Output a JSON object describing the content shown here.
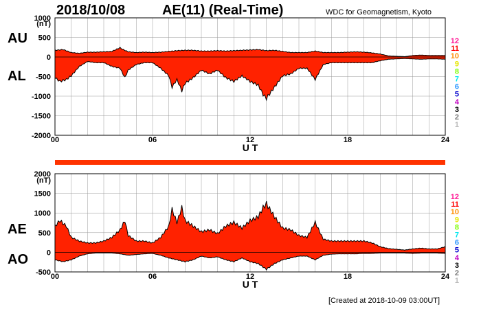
{
  "header": {
    "date": "2018/10/08",
    "title": "AE(11) (Real-Time)",
    "source": "WDC for Geomagnetism, Kyoto"
  },
  "footer": {
    "created": "[Created at 2018-10-09 03:00UT]"
  },
  "colors": {
    "fill": "#ff2200",
    "outline": "#000000",
    "grid": "#999999",
    "indicator": "#ff3300"
  },
  "chart_data": [
    {
      "type": "area",
      "id": "au-al",
      "side_labels": [
        "AU",
        "AL"
      ],
      "unit_label": "(nT)",
      "ylim": [
        -2000,
        1000
      ],
      "y_ticks": [
        1000,
        500,
        0,
        -500,
        -1000,
        -1500,
        -2000
      ],
      "xlim": [
        0,
        24
      ],
      "x_ticks": [
        "00",
        "06",
        "12",
        "18",
        "24"
      ],
      "xlabel": "U T",
      "grid": true,
      "series": [
        {
          "name": "AU",
          "x": [
            0,
            0.5,
            1,
            1.5,
            2,
            2.5,
            3,
            3.5,
            4,
            4.2,
            4.5,
            5,
            5.5,
            6,
            6.5,
            7,
            7.5,
            8,
            8.5,
            9,
            9.5,
            10,
            10.5,
            11,
            11.5,
            12,
            12.5,
            13,
            13.5,
            14,
            14.5,
            15,
            15.5,
            16,
            16.5,
            17,
            17.5,
            18,
            18.5,
            19,
            19.5,
            20,
            20.5,
            21,
            21.5,
            22,
            22.5,
            23,
            23.5,
            24
          ],
          "values": [
            180,
            200,
            120,
            100,
            130,
            130,
            140,
            150,
            250,
            200,
            140,
            120,
            130,
            120,
            130,
            150,
            170,
            180,
            180,
            160,
            160,
            170,
            160,
            170,
            180,
            190,
            200,
            170,
            180,
            150,
            120,
            120,
            120,
            160,
            120,
            120,
            120,
            130,
            140,
            130,
            110,
            80,
            30,
            20,
            10,
            40,
            50,
            40,
            40,
            40
          ]
        },
        {
          "name": "AL",
          "x": [
            0,
            0.3,
            0.7,
            1,
            1.5,
            2,
            2.5,
            3,
            3.5,
            4,
            4.3,
            4.5,
            5,
            5.5,
            6,
            6.5,
            7,
            7.2,
            7.5,
            7.8,
            8,
            8.5,
            9,
            9.5,
            10,
            10.5,
            11,
            11.5,
            12,
            12.5,
            12.8,
            13,
            13.5,
            14,
            14.5,
            15,
            15.5,
            16,
            16.5,
            17,
            17.5,
            18,
            18.5,
            19,
            19.5,
            20,
            20.5,
            21,
            21.5,
            22,
            22.5,
            23,
            23.5,
            24
          ],
          "values": [
            -550,
            -650,
            -600,
            -500,
            -250,
            -120,
            -150,
            -150,
            -250,
            -300,
            -550,
            -350,
            -200,
            -150,
            -150,
            -300,
            -500,
            -800,
            -600,
            -900,
            -700,
            -550,
            -350,
            -450,
            -350,
            -550,
            -650,
            -500,
            -650,
            -750,
            -1000,
            -1100,
            -800,
            -500,
            -450,
            -300,
            -300,
            -600,
            -200,
            -150,
            -150,
            -150,
            -150,
            -150,
            -150,
            -100,
            -60,
            -50,
            -40,
            -50,
            -60,
            -50,
            -50,
            -60
          ]
        }
      ]
    },
    {
      "type": "area",
      "id": "ae-ao",
      "side_labels": [
        "AE",
        "AO"
      ],
      "unit_label": "(nT)",
      "ylim": [
        -500,
        2000
      ],
      "y_ticks": [
        2000,
        1500,
        1000,
        500,
        0,
        -500
      ],
      "xlim": [
        0,
        24
      ],
      "x_ticks": [
        "00",
        "06",
        "12",
        "18",
        "24"
      ],
      "xlabel": "U T",
      "grid": true,
      "series": [
        {
          "name": "AE",
          "x": [
            0,
            0.3,
            0.7,
            1,
            1.5,
            2,
            2.5,
            3,
            3.5,
            4,
            4.3,
            4.5,
            5,
            5.5,
            6,
            6.5,
            7,
            7.2,
            7.5,
            7.8,
            8,
            8.5,
            9,
            9.5,
            10,
            10.5,
            11,
            11.5,
            12,
            12.5,
            12.8,
            13,
            13.5,
            14,
            14.5,
            15,
            15.5,
            16,
            16.5,
            17,
            17.5,
            18,
            18.5,
            19,
            19.5,
            20,
            20.5,
            21,
            21.5,
            22,
            22.5,
            23,
            23.5,
            24
          ],
          "values": [
            700,
            850,
            700,
            400,
            300,
            250,
            250,
            300,
            400,
            600,
            850,
            450,
            300,
            300,
            250,
            400,
            700,
            1150,
            800,
            1200,
            850,
            700,
            550,
            600,
            500,
            700,
            800,
            650,
            850,
            950,
            1200,
            1300,
            950,
            650,
            600,
            450,
            400,
            800,
            350,
            300,
            300,
            300,
            300,
            300,
            250,
            150,
            100,
            80,
            60,
            90,
            110,
            90,
            90,
            150
          ]
        },
        {
          "name": "AO",
          "x": [
            0,
            0.5,
            1,
            1.5,
            2,
            2.5,
            3,
            3.5,
            4,
            4.5,
            5,
            5.5,
            6,
            6.5,
            7,
            7.5,
            8,
            8.5,
            9,
            9.5,
            10,
            10.5,
            11,
            11.5,
            12,
            12.5,
            13,
            13.5,
            14,
            14.5,
            15,
            15.5,
            16,
            16.5,
            17,
            17.5,
            18,
            18.5,
            19,
            19.5,
            20,
            20.5,
            21,
            21.5,
            22,
            22.5,
            23,
            23.5,
            24
          ],
          "values": [
            -200,
            -250,
            -200,
            -100,
            -40,
            -20,
            -20,
            -20,
            -40,
            -80,
            -60,
            -40,
            -30,
            -80,
            -150,
            -200,
            -250,
            -200,
            -100,
            -150,
            -120,
            -200,
            -250,
            -150,
            -250,
            -300,
            -450,
            -300,
            -200,
            -150,
            -100,
            -100,
            -200,
            -80,
            -50,
            -40,
            -40,
            -40,
            -30,
            -30,
            -20,
            -20,
            -20,
            -20,
            -30,
            -20,
            -20,
            -20,
            -30
          ]
        }
      ]
    }
  ],
  "station_legend": [
    {
      "label": "12",
      "color": "#ff1493"
    },
    {
      "label": "11",
      "color": "#ff0000"
    },
    {
      "label": "10",
      "color": "#ff8c00"
    },
    {
      "label": "9",
      "color": "#e6e600"
    },
    {
      "label": "8",
      "color": "#7cfc00"
    },
    {
      "label": "7",
      "color": "#00e5ee"
    },
    {
      "label": "6",
      "color": "#1e90ff"
    },
    {
      "label": "5",
      "color": "#0000cd"
    },
    {
      "label": "4",
      "color": "#c000c0"
    },
    {
      "label": "3",
      "color": "#000000"
    },
    {
      "label": "2",
      "color": "#777777"
    },
    {
      "label": "1",
      "color": "#bbbbbb"
    }
  ]
}
